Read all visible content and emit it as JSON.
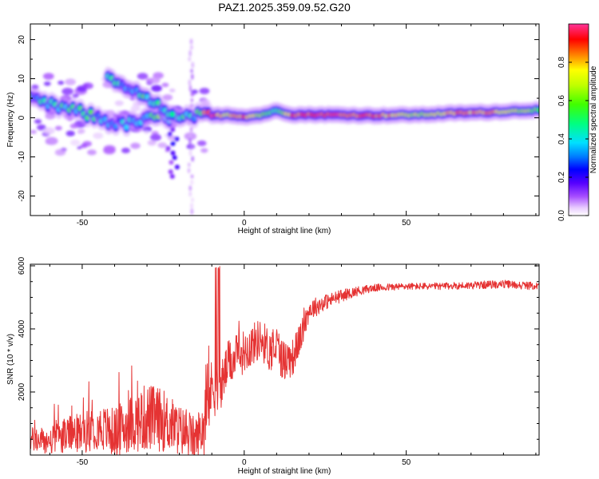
{
  "title": "PAZ1.2025.359.09.52.G20",
  "chart_data": [
    {
      "type": "heatmap",
      "xlabel": "Height of straight line (km)",
      "ylabel": "Frequency (Hz)",
      "xlim": [
        -66,
        91
      ],
      "ylim": [
        -25,
        24
      ],
      "xticks": [
        -50,
        0,
        50
      ],
      "yticks": [
        -20,
        -10,
        0,
        10,
        20
      ],
      "colorbar": {
        "label": "Normalized spectral amplitude",
        "range": [
          0,
          1
        ],
        "ticks": [
          "0.0",
          "0.2",
          "0.4",
          "0.6",
          "0.8"
        ]
      },
      "ridge": [
        {
          "x": -65,
          "f": 4.3,
          "a": 0.45
        },
        {
          "x": -60,
          "f": 3.2,
          "a": 0.45
        },
        {
          "x": -55,
          "f": 2.5,
          "a": 0.45
        },
        {
          "x": -50,
          "f": 1.2,
          "a": 0.55
        },
        {
          "x": -45,
          "f": 0.0,
          "a": 0.45
        },
        {
          "x": -40,
          "f": -1.5,
          "a": 0.35
        },
        {
          "x": -35,
          "f": -1.5,
          "a": 0.4
        },
        {
          "x": -30,
          "f": -0.5,
          "a": 0.5
        },
        {
          "x": -25,
          "f": 0.5,
          "a": 0.55
        },
        {
          "x": -20,
          "f": -0.5,
          "a": 0.55
        },
        {
          "x": -15,
          "f": 0.5,
          "a": 0.5
        },
        {
          "x": -10,
          "f": 0.5,
          "a": 0.95
        },
        {
          "x": -5,
          "f": 0.8,
          "a": 0.75
        },
        {
          "x": 0,
          "f": 0.3,
          "a": 0.9
        },
        {
          "x": 5,
          "f": 0.7,
          "a": 0.65
        },
        {
          "x": 10,
          "f": 1.8,
          "a": 0.45
        },
        {
          "x": 15,
          "f": 0.8,
          "a": 0.9
        },
        {
          "x": 25,
          "f": 0.8,
          "a": 0.95
        },
        {
          "x": 40,
          "f": 0.6,
          "a": 0.9
        },
        {
          "x": 55,
          "f": 0.8,
          "a": 0.65
        },
        {
          "x": 65,
          "f": 1.2,
          "a": 0.85
        },
        {
          "x": 75,
          "f": 1.4,
          "a": 0.85
        },
        {
          "x": 90,
          "f": 2.0,
          "a": 0.6
        }
      ],
      "secondary_branch": [
        {
          "x": -42,
          "f": 9.5,
          "a": 0.4
        },
        {
          "x": -38,
          "f": 8.0,
          "a": 0.45
        },
        {
          "x": -34,
          "f": 6.5,
          "a": 0.45
        },
        {
          "x": -30,
          "f": 4.5,
          "a": 0.5
        },
        {
          "x": -26,
          "f": 2.5,
          "a": 0.45
        },
        {
          "x": -22,
          "f": 1.5,
          "a": 0.4
        }
      ]
    },
    {
      "type": "line",
      "xlabel": "Height of straight line (km)",
      "ylabel": "SNR (10 * v/v)",
      "xlim": [
        -66,
        91
      ],
      "ylim": [
        0,
        6050
      ],
      "xticks": [
        -50,
        0,
        50
      ],
      "yticks": [
        2000,
        4000,
        6000
      ],
      "color": "#e53333",
      "series": [
        {
          "name": "SNR",
          "x": [
            -66,
            -60,
            -55,
            -50,
            -45,
            -40,
            -35,
            -30,
            -25,
            -20,
            -15,
            -12,
            -10,
            -8,
            -5,
            0,
            5,
            8,
            10,
            12,
            15,
            18,
            20,
            25,
            30,
            35,
            40,
            50,
            60,
            70,
            80,
            91
          ],
          "y": [
            500,
            420,
            650,
            700,
            900,
            700,
            1000,
            1200,
            1100,
            800,
            500,
            1000,
            2200,
            1900,
            2900,
            3300,
            3700,
            3300,
            3500,
            3000,
            3100,
            3900,
            4600,
            4850,
            5050,
            5200,
            5300,
            5350,
            5350,
            5380,
            5420,
            5350
          ],
          "noise": [
            400,
            450,
            550,
            650,
            700,
            800,
            900,
            1100,
            1000,
            800,
            700,
            1000,
            900,
            800,
            700,
            700,
            650,
            700,
            650,
            700,
            600,
            450,
            350,
            250,
            200,
            150,
            120,
            110,
            110,
            120,
            130,
            120
          ]
        }
      ]
    }
  ]
}
